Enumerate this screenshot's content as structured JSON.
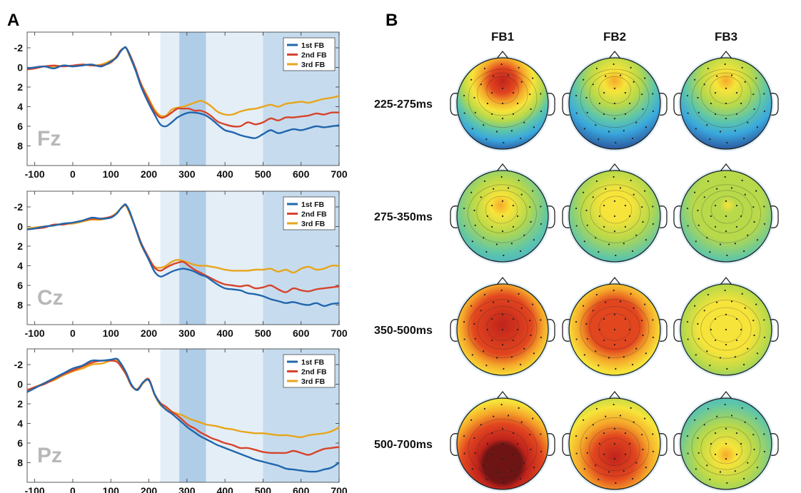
{
  "panels": {
    "a": "A",
    "b": "B"
  },
  "chart_data": [
    {
      "type": "line",
      "panel": "A",
      "channel": "Fz",
      "xticks": [
        -100,
        0,
        100,
        200,
        300,
        400,
        500,
        600,
        700
      ],
      "yticks": [
        -2,
        0,
        2,
        4,
        6,
        8
      ],
      "xlim": [
        -120,
        700
      ],
      "ylim": [
        10,
        -3.6
      ],
      "y_axis": "reversed",
      "shaded_windows": [
        {
          "start": 230,
          "end": 280,
          "shade": "light"
        },
        {
          "start": 280,
          "end": 350,
          "shade": "dark"
        },
        {
          "start": 350,
          "end": 500,
          "shade": "light"
        },
        {
          "start": 500,
          "end": 700,
          "shade": "medium"
        }
      ],
      "legend_position": "top-right",
      "x": [
        -120,
        -100,
        -75,
        -50,
        -25,
        0,
        25,
        50,
        75,
        100,
        115,
        125,
        135,
        140,
        150,
        165,
        180,
        200,
        215,
        230,
        245,
        260,
        275,
        290,
        305,
        320,
        335,
        350,
        365,
        380,
        400,
        420,
        440,
        460,
        480,
        500,
        520,
        540,
        560,
        580,
        600,
        620,
        640,
        660,
        680,
        700
      ],
      "series": [
        {
          "name": "1st FB",
          "color": "#2166ac",
          "values": [
            0.1,
            0.0,
            -0.1,
            0.1,
            -0.2,
            -0.1,
            -0.2,
            -0.3,
            -0.1,
            -0.6,
            -1.0,
            -1.6,
            -2.0,
            -2.0,
            -1.2,
            0.3,
            2.0,
            3.7,
            4.8,
            5.8,
            6.0,
            5.6,
            5.1,
            4.8,
            4.6,
            4.6,
            4.7,
            4.9,
            5.3,
            5.8,
            6.4,
            6.6,
            6.9,
            7.1,
            7.2,
            6.8,
            6.4,
            6.7,
            6.5,
            6.3,
            6.4,
            6.2,
            6.0,
            6.1,
            6.0,
            5.9
          ]
        },
        {
          "name": "2nd FB",
          "color": "#d6442c",
          "values": [
            0.2,
            0.1,
            -0.1,
            -0.2,
            -0.1,
            -0.2,
            -0.3,
            -0.2,
            -0.2,
            -0.5,
            -1.1,
            -1.7,
            -2.0,
            -2.0,
            -1.3,
            0.1,
            1.8,
            3.4,
            4.5,
            5.1,
            5.0,
            4.6,
            4.2,
            4.2,
            4.2,
            4.4,
            4.4,
            4.6,
            5.0,
            5.5,
            5.8,
            6.0,
            6.0,
            5.6,
            5.8,
            5.6,
            5.2,
            5.4,
            5.1,
            5.1,
            5.0,
            4.9,
            4.7,
            4.8,
            4.6,
            4.6
          ]
        },
        {
          "name": "3rd FB",
          "color": "#e8a51c",
          "values": [
            0.2,
            0.0,
            -0.1,
            0.0,
            -0.2,
            -0.1,
            -0.3,
            -0.2,
            -0.3,
            -0.7,
            -1.1,
            -1.7,
            -2.0,
            -2.0,
            -1.1,
            0.3,
            1.7,
            3.2,
            4.3,
            4.9,
            4.9,
            4.3,
            4.1,
            4.0,
            3.8,
            3.6,
            3.4,
            3.6,
            4.0,
            4.5,
            4.8,
            4.8,
            4.5,
            4.3,
            4.2,
            4.0,
            3.8,
            4.0,
            3.7,
            3.6,
            3.5,
            3.6,
            3.4,
            3.2,
            3.1,
            2.9
          ]
        }
      ]
    },
    {
      "type": "line",
      "panel": "A",
      "channel": "Cz",
      "xticks": [
        -100,
        0,
        100,
        200,
        300,
        400,
        500,
        600,
        700
      ],
      "yticks": [
        -2,
        0,
        2,
        4,
        6,
        8
      ],
      "xlim": [
        -120,
        700
      ],
      "ylim": [
        10,
        -3.6
      ],
      "y_axis": "reversed",
      "shaded_windows": [
        {
          "start": 230,
          "end": 280,
          "shade": "light"
        },
        {
          "start": 280,
          "end": 350,
          "shade": "dark"
        },
        {
          "start": 350,
          "end": 500,
          "shade": "light"
        },
        {
          "start": 500,
          "end": 700,
          "shade": "medium"
        }
      ],
      "legend_position": "top-right",
      "x": [
        -120,
        -100,
        -75,
        -50,
        -25,
        0,
        25,
        50,
        75,
        100,
        115,
        125,
        135,
        140,
        150,
        165,
        180,
        200,
        215,
        230,
        245,
        260,
        275,
        290,
        305,
        320,
        335,
        350,
        365,
        380,
        400,
        420,
        440,
        460,
        480,
        500,
        520,
        540,
        560,
        580,
        600,
        620,
        640,
        660,
        680,
        700
      ],
      "series": [
        {
          "name": "1st FB",
          "color": "#2166ac",
          "values": [
            0.3,
            0.2,
            0.0,
            -0.1,
            -0.3,
            -0.4,
            -0.6,
            -0.9,
            -0.8,
            -0.9,
            -1.3,
            -1.8,
            -2.2,
            -2.2,
            -1.5,
            0.2,
            1.8,
            3.4,
            4.6,
            5.1,
            4.9,
            4.6,
            4.4,
            4.3,
            4.4,
            4.6,
            4.9,
            5.1,
            5.5,
            5.9,
            6.3,
            6.4,
            6.5,
            6.8,
            6.9,
            7.1,
            7.4,
            7.6,
            7.8,
            7.7,
            7.9,
            8.0,
            7.8,
            8.1,
            7.9,
            7.8
          ]
        },
        {
          "name": "2nd FB",
          "color": "#d6442c",
          "values": [
            0.3,
            0.2,
            0.1,
            -0.2,
            -0.2,
            -0.4,
            -0.6,
            -0.8,
            -0.8,
            -1.0,
            -1.3,
            -1.8,
            -2.2,
            -2.2,
            -1.4,
            0.1,
            1.7,
            3.2,
            4.2,
            4.5,
            4.2,
            3.9,
            3.7,
            3.6,
            4.0,
            4.4,
            4.7,
            5.0,
            5.3,
            5.6,
            5.9,
            6.0,
            6.1,
            6.0,
            6.3,
            6.2,
            6.0,
            6.4,
            6.7,
            6.3,
            6.5,
            6.6,
            6.4,
            6.3,
            6.2,
            6.1
          ]
        },
        {
          "name": "3rd FB",
          "color": "#e8a51c",
          "values": [
            0.2,
            0.1,
            0.0,
            -0.1,
            -0.3,
            -0.3,
            -0.5,
            -0.7,
            -0.7,
            -1.0,
            -1.4,
            -1.8,
            -2.1,
            -2.1,
            -1.3,
            0.2,
            1.9,
            3.3,
            4.1,
            4.2,
            4.0,
            3.6,
            3.4,
            3.5,
            3.7,
            3.9,
            4.0,
            4.0,
            4.1,
            4.2,
            4.4,
            4.5,
            4.5,
            4.5,
            4.4,
            4.4,
            4.3,
            4.6,
            4.4,
            4.7,
            4.3,
            4.1,
            4.4,
            4.3,
            4.0,
            4.0
          ]
        }
      ]
    },
    {
      "type": "line",
      "panel": "A",
      "channel": "Pz",
      "xticks": [
        -100,
        0,
        100,
        200,
        300,
        400,
        500,
        600,
        700
      ],
      "yticks": [
        -2,
        0,
        2,
        4,
        6,
        8
      ],
      "xlim": [
        -120,
        700
      ],
      "ylim": [
        10,
        -3.6
      ],
      "y_axis": "reversed",
      "shaded_windows": [
        {
          "start": 230,
          "end": 280,
          "shade": "light"
        },
        {
          "start": 280,
          "end": 350,
          "shade": "dark"
        },
        {
          "start": 350,
          "end": 500,
          "shade": "light"
        },
        {
          "start": 500,
          "end": 700,
          "shade": "medium"
        }
      ],
      "legend_position": "top-right",
      "x": [
        -120,
        -100,
        -75,
        -50,
        -25,
        0,
        25,
        50,
        75,
        100,
        115,
        125,
        140,
        155,
        170,
        185,
        200,
        215,
        230,
        245,
        260,
        275,
        290,
        305,
        320,
        335,
        350,
        365,
        380,
        400,
        420,
        440,
        460,
        480,
        500,
        520,
        540,
        560,
        580,
        600,
        620,
        640,
        660,
        680,
        700
      ],
      "series": [
        {
          "name": "1st FB",
          "color": "#2166ac",
          "values": [
            0.8,
            0.4,
            -0.1,
            -0.6,
            -1.1,
            -1.6,
            -1.9,
            -2.4,
            -2.4,
            -2.5,
            -2.6,
            -2.2,
            -1.2,
            0.1,
            0.6,
            -0.2,
            -0.4,
            1.0,
            2.0,
            2.6,
            3.0,
            3.5,
            4.0,
            4.5,
            4.9,
            5.3,
            5.6,
            5.9,
            6.2,
            6.5,
            6.8,
            7.1,
            7.4,
            7.7,
            7.9,
            8.1,
            8.3,
            8.6,
            8.7,
            8.8,
            8.9,
            8.9,
            8.7,
            8.5,
            8.0
          ]
        },
        {
          "name": "2nd FB",
          "color": "#d6442c",
          "values": [
            0.6,
            0.3,
            0.0,
            -0.5,
            -1.0,
            -1.4,
            -1.8,
            -2.2,
            -2.4,
            -2.4,
            -2.3,
            -1.9,
            -1.0,
            0.2,
            0.5,
            -0.2,
            -0.5,
            1.0,
            1.9,
            2.3,
            2.8,
            3.2,
            3.7,
            4.2,
            4.5,
            4.9,
            5.2,
            5.5,
            5.7,
            6.0,
            6.2,
            6.5,
            6.5,
            6.7,
            6.9,
            7.0,
            7.0,
            7.0,
            6.8,
            7.0,
            7.2,
            6.9,
            6.6,
            6.5,
            6.4
          ]
        },
        {
          "name": "3rd FB",
          "color": "#e8a51c",
          "values": [
            0.6,
            0.3,
            -0.1,
            -0.4,
            -0.9,
            -1.3,
            -1.6,
            -2.0,
            -2.1,
            -2.4,
            -2.4,
            -1.9,
            -1.0,
            0.1,
            0.6,
            -0.1,
            -0.4,
            1.1,
            2.1,
            2.5,
            2.8,
            3.0,
            3.2,
            3.5,
            3.7,
            3.9,
            4.1,
            4.2,
            4.3,
            4.5,
            4.6,
            4.8,
            4.9,
            5.0,
            5.0,
            5.1,
            5.2,
            5.2,
            5.3,
            5.4,
            5.2,
            5.1,
            5.0,
            4.8,
            4.4
          ]
        }
      ]
    },
    {
      "type": "heatmap",
      "panel": "B",
      "description_kind": "scalp topography maps",
      "columns": [
        "FB1",
        "FB2",
        "FB3"
      ],
      "rows": [
        "225-275ms",
        "275-350ms",
        "350-500ms",
        "500-700ms"
      ],
      "colormap": "parula-like: blue (low) → green → yellow → orange → red → dark red (high)",
      "colors": [
        "#27418e",
        "#3aa8dd",
        "#5fc6a8",
        "#b8d94a",
        "#f7e43a",
        "#f5a82a",
        "#e2461f",
        "#c0231b",
        "#6f1414"
      ]
    }
  ]
}
